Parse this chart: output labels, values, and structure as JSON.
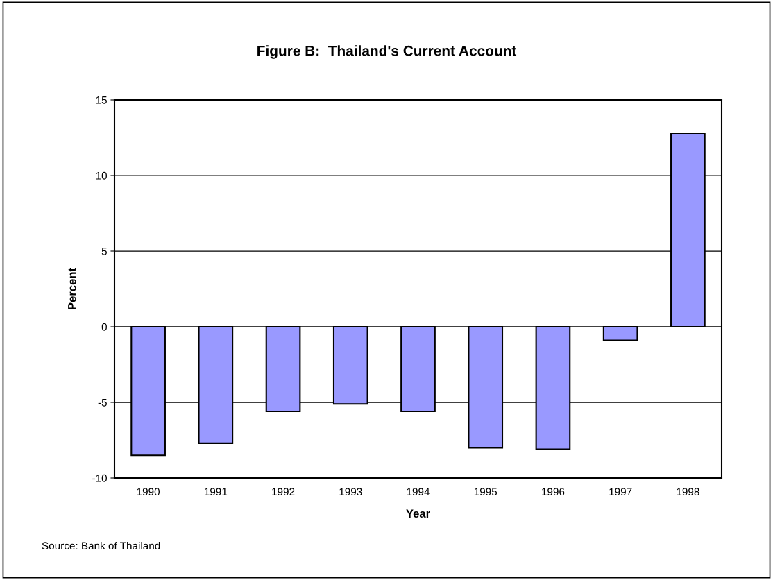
{
  "chart_data": {
    "type": "bar",
    "title": "Figure B:  Thailand's Current Account",
    "xlabel": "Year",
    "ylabel": "Percent",
    "categories": [
      "1990",
      "1991",
      "1992",
      "1993",
      "1994",
      "1995",
      "1996",
      "1997",
      "1998"
    ],
    "values": [
      -8.5,
      -7.7,
      -5.6,
      -5.1,
      -5.6,
      -8.0,
      -8.1,
      -0.9,
      12.8
    ],
    "color": "#9999ff",
    "ylim": [
      -10,
      15
    ],
    "yticks": [
      -10,
      -5,
      0,
      5,
      10,
      15
    ],
    "grid": "y",
    "annotations": [
      "Source: Bank of Thailand"
    ]
  }
}
